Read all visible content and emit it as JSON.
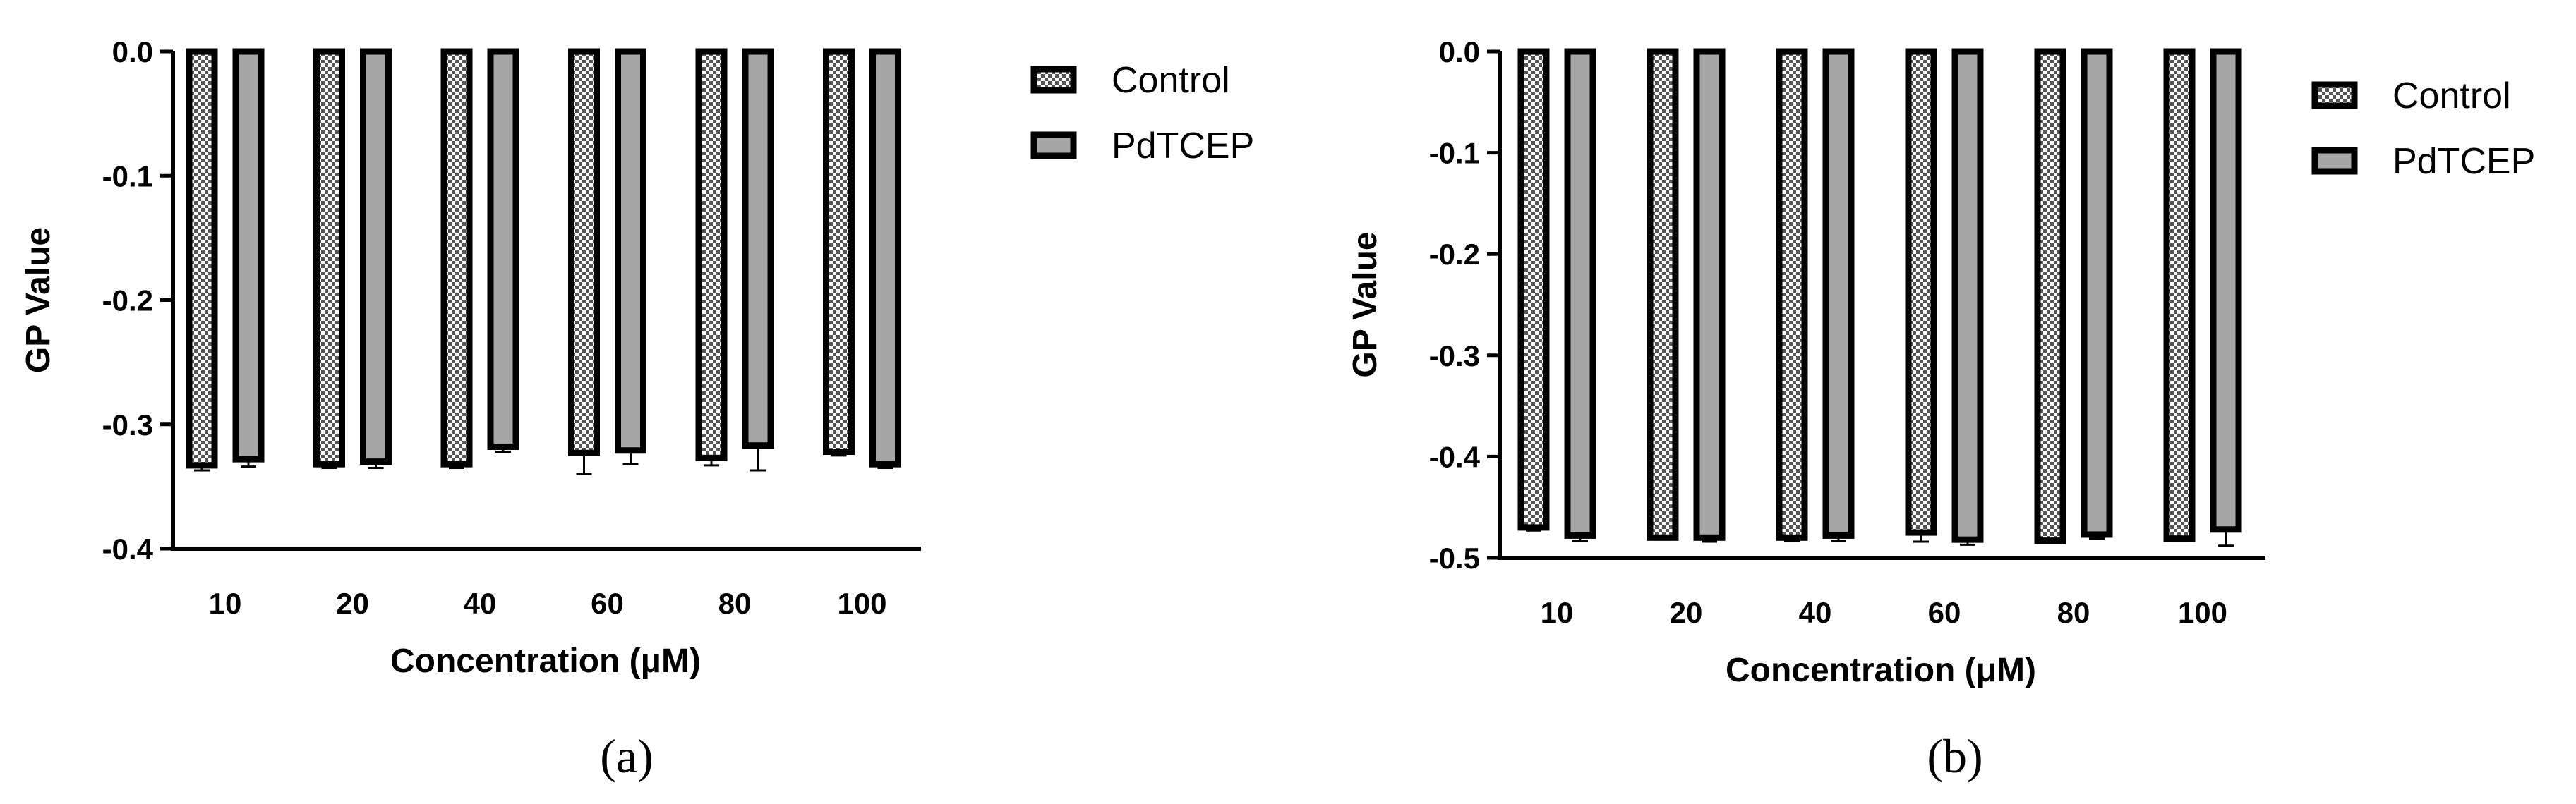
{
  "chart_data": [
    {
      "type": "bar",
      "panel_label": "(a)",
      "categories": [
        "10",
        "20",
        "40",
        "60",
        "80",
        "100"
      ],
      "series": [
        {
          "name": "Control",
          "values": [
            -0.333,
            -0.332,
            -0.332,
            -0.323,
            -0.327,
            -0.322
          ],
          "errors": [
            0.004,
            0.003,
            0.003,
            0.017,
            0.006,
            0.003
          ]
        },
        {
          "name": "PdTCEP",
          "values": [
            -0.328,
            -0.33,
            -0.318,
            -0.321,
            -0.317,
            -0.332
          ],
          "errors": [
            0.006,
            0.005,
            0.004,
            0.011,
            0.02,
            0.003
          ]
        }
      ],
      "xlabel": "Concentration (μM)",
      "ylabel": "GP Value",
      "ylim": [
        -0.4,
        0.0
      ],
      "yticks": [
        "0.0",
        "-0.1",
        "-0.2",
        "-0.3",
        "-0.4"
      ],
      "grid": false,
      "legend_position": "right"
    },
    {
      "type": "bar",
      "panel_label": "(b)",
      "categories": [
        "10",
        "20",
        "40",
        "60",
        "80",
        "100"
      ],
      "series": [
        {
          "name": "Control",
          "values": [
            -0.47,
            -0.48,
            -0.48,
            -0.475,
            -0.483,
            -0.481
          ],
          "errors": [
            0.003,
            0.002,
            0.003,
            0.009,
            0.002,
            0.002
          ]
        },
        {
          "name": "PdTCEP",
          "values": [
            -0.478,
            -0.48,
            -0.478,
            -0.482,
            -0.477,
            -0.472
          ],
          "errors": [
            0.005,
            0.004,
            0.005,
            0.005,
            0.004,
            0.016
          ]
        }
      ],
      "xlabel": "Concentration (μM)",
      "ylabel": "GP Value",
      "ylim": [
        -0.5,
        0.0
      ],
      "yticks": [
        "0.0",
        "-0.1",
        "-0.2",
        "-0.3",
        "-0.4",
        "-0.5"
      ],
      "grid": false,
      "legend_position": "right"
    }
  ],
  "colors": {
    "pdtcep_fill": "#a6a6a6",
    "control_check_dark": "#555555",
    "control_check_light": "#ffffff",
    "outline": "#000000"
  }
}
